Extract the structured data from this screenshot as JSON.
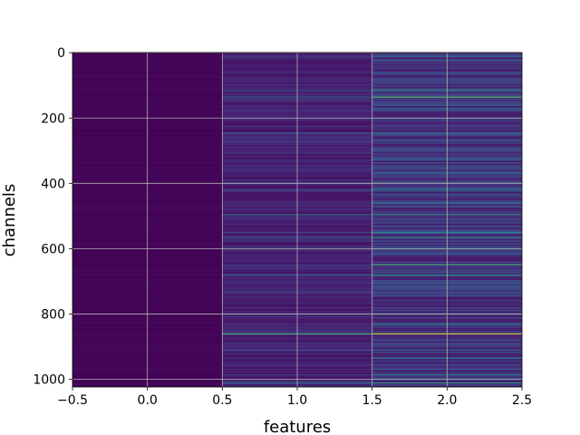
{
  "chart_data": {
    "type": "heatmap",
    "xlabel": "features",
    "ylabel": "channels",
    "x_ticks": [
      -0.5,
      0.0,
      0.5,
      1.0,
      1.5,
      2.0,
      2.5
    ],
    "x_tick_labels": [
      "−0.5",
      "0.0",
      "0.5",
      "1.0",
      "1.5",
      "2.0",
      "2.5"
    ],
    "y_ticks": [
      0,
      200,
      400,
      600,
      800,
      1000
    ],
    "y_tick_labels": [
      "0",
      "200",
      "400",
      "600",
      "800",
      "1000"
    ],
    "xlim": [
      -0.5,
      2.5
    ],
    "ylim": [
      1023.5,
      -0.5
    ],
    "y_inverted": true,
    "grid": true,
    "colormap": "viridis",
    "columns": [
      0,
      1,
      2
    ],
    "rows": 1024,
    "column_base_values": [
      0.02,
      0.08,
      0.1
    ],
    "highlighted_rows": [
      {
        "channel": 10,
        "values": [
          0.02,
          0.15,
          0.45
        ]
      },
      {
        "channel": 60,
        "values": [
          0.02,
          0.12,
          0.35
        ]
      },
      {
        "channel": 115,
        "values": [
          0.02,
          0.3,
          0.55
        ]
      },
      {
        "channel": 135,
        "values": [
          0.02,
          0.35,
          0.75
        ]
      },
      {
        "channel": 160,
        "values": [
          0.02,
          0.1,
          0.3
        ]
      },
      {
        "channel": 245,
        "values": [
          0.02,
          0.3,
          0.45
        ]
      },
      {
        "channel": 365,
        "values": [
          0.02,
          0.12,
          0.35
        ]
      },
      {
        "channel": 420,
        "values": [
          0.02,
          0.3,
          0.4
        ]
      },
      {
        "channel": 460,
        "values": [
          0.02,
          0.15,
          0.4
        ]
      },
      {
        "channel": 495,
        "values": [
          0.02,
          0.4,
          0.55
        ]
      },
      {
        "channel": 510,
        "values": [
          0.02,
          0.15,
          0.35
        ]
      },
      {
        "channel": 550,
        "values": [
          0.02,
          0.25,
          0.5
        ]
      },
      {
        "channel": 565,
        "values": [
          0.02,
          0.3,
          0.6
        ]
      },
      {
        "channel": 600,
        "values": [
          0.02,
          0.15,
          0.3
        ]
      },
      {
        "channel": 648,
        "values": [
          0.02,
          0.2,
          0.7
        ]
      },
      {
        "channel": 680,
        "values": [
          0.02,
          0.4,
          0.55
        ]
      },
      {
        "channel": 705,
        "values": [
          0.02,
          0.15,
          0.35
        ]
      },
      {
        "channel": 800,
        "values": [
          0.02,
          0.2,
          0.4
        ]
      },
      {
        "channel": 830,
        "values": [
          0.02,
          0.15,
          0.5
        ]
      },
      {
        "channel": 860,
        "values": [
          0.02,
          0.7,
          0.95
        ]
      },
      {
        "channel": 910,
        "values": [
          0.02,
          0.25,
          0.35
        ]
      },
      {
        "channel": 935,
        "values": [
          0.02,
          0.15,
          0.4
        ]
      },
      {
        "channel": 985,
        "values": [
          0.02,
          0.2,
          0.45
        ]
      },
      {
        "channel": 1010,
        "values": [
          0.02,
          0.35,
          0.6
        ]
      }
    ]
  }
}
